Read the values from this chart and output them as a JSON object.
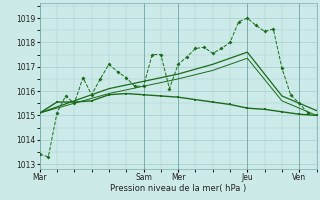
{
  "xlabel": "Pression niveau de la mer( hPa )",
  "bg_color": "#cceae8",
  "grid_color": "#aad4d2",
  "line_color": "#1a6b1a",
  "xlim": [
    0,
    96
  ],
  "ylim": [
    1012.8,
    1019.6
  ],
  "yticks": [
    1013,
    1014,
    1015,
    1016,
    1017,
    1018,
    1019
  ],
  "day_labels": [
    "Mar",
    "Sam",
    "Mer",
    "Jeu",
    "Ven"
  ],
  "day_positions": [
    0,
    36,
    48,
    72,
    90
  ],
  "series1_x": [
    0,
    3,
    6,
    9,
    12,
    15,
    18,
    21,
    24,
    27,
    30,
    33,
    36,
    39,
    42,
    45,
    48,
    51,
    54,
    57,
    60,
    63,
    66,
    69,
    72,
    75,
    78,
    81,
    84,
    87,
    90,
    93
  ],
  "series1_y": [
    1013.4,
    1013.3,
    1015.1,
    1015.8,
    1015.5,
    1016.55,
    1015.85,
    1016.5,
    1017.1,
    1016.8,
    1016.55,
    1016.2,
    1016.2,
    1017.5,
    1017.5,
    1016.1,
    1017.1,
    1017.4,
    1017.75,
    1017.8,
    1017.55,
    1017.75,
    1018.0,
    1018.85,
    1019.0,
    1018.7,
    1018.45,
    1018.55,
    1016.95,
    1015.85,
    1015.5,
    1015.1
  ],
  "series2_x": [
    0,
    6,
    12,
    18,
    24,
    30,
    36,
    42,
    48,
    54,
    60,
    66,
    72,
    78,
    84,
    90,
    96
  ],
  "series2_y": [
    1015.1,
    1015.55,
    1015.55,
    1015.6,
    1015.85,
    1015.9,
    1015.85,
    1015.8,
    1015.75,
    1015.65,
    1015.55,
    1015.45,
    1015.3,
    1015.25,
    1015.15,
    1015.05,
    1015.0
  ],
  "series3_x": [
    0,
    12,
    24,
    36,
    48,
    60,
    72,
    84,
    96
  ],
  "series3_y": [
    1015.1,
    1015.6,
    1016.1,
    1016.4,
    1016.7,
    1017.1,
    1017.6,
    1015.8,
    1015.2
  ],
  "series4_x": [
    0,
    12,
    24,
    36,
    48,
    60,
    72,
    84,
    96
  ],
  "series4_y": [
    1015.1,
    1015.5,
    1015.9,
    1016.2,
    1016.5,
    1016.85,
    1017.35,
    1015.6,
    1015.0
  ]
}
